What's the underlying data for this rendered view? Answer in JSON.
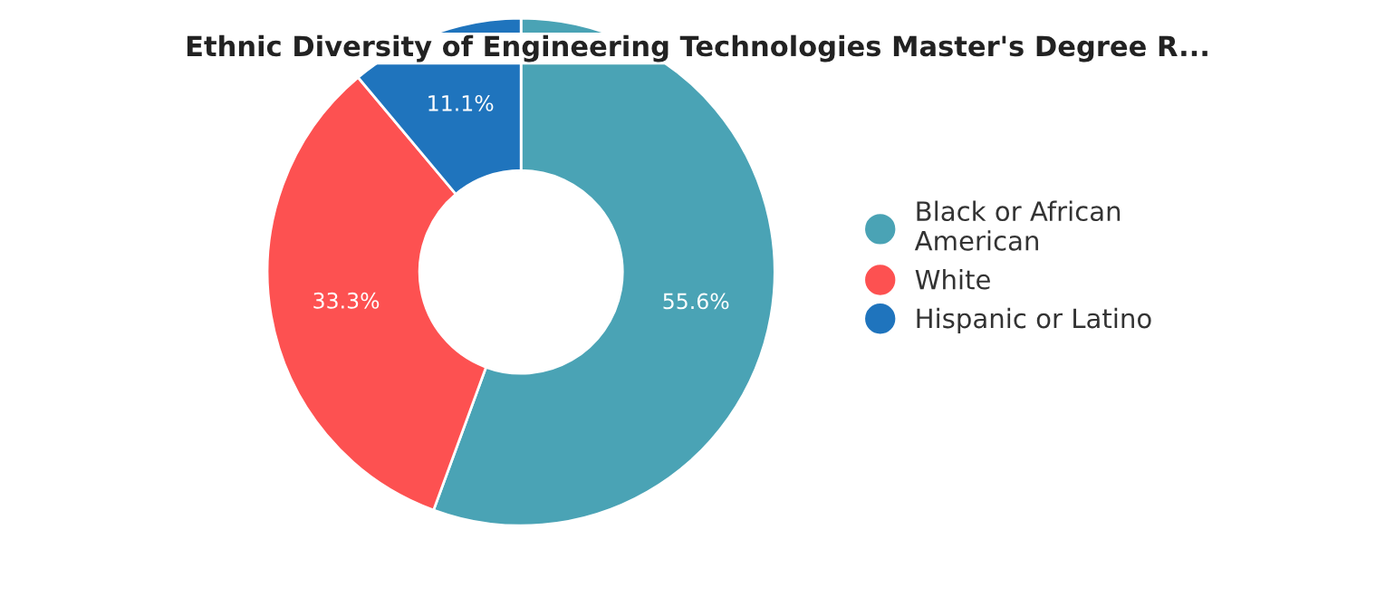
{
  "chart_data": {
    "type": "donut",
    "title": "Ethnic Diversity of Engineering Technologies Master's Degree R...",
    "categories": [
      "Black or African\nAmerican",
      "White",
      "Hispanic or Latino"
    ],
    "values": [
      55.6,
      33.3,
      11.1
    ],
    "colors": [
      "#4aa3b5",
      "#fd5151",
      "#1f74bd"
    ],
    "value_labels": [
      "55.6%",
      "33.3%",
      "11.1%"
    ],
    "legend": "right"
  }
}
